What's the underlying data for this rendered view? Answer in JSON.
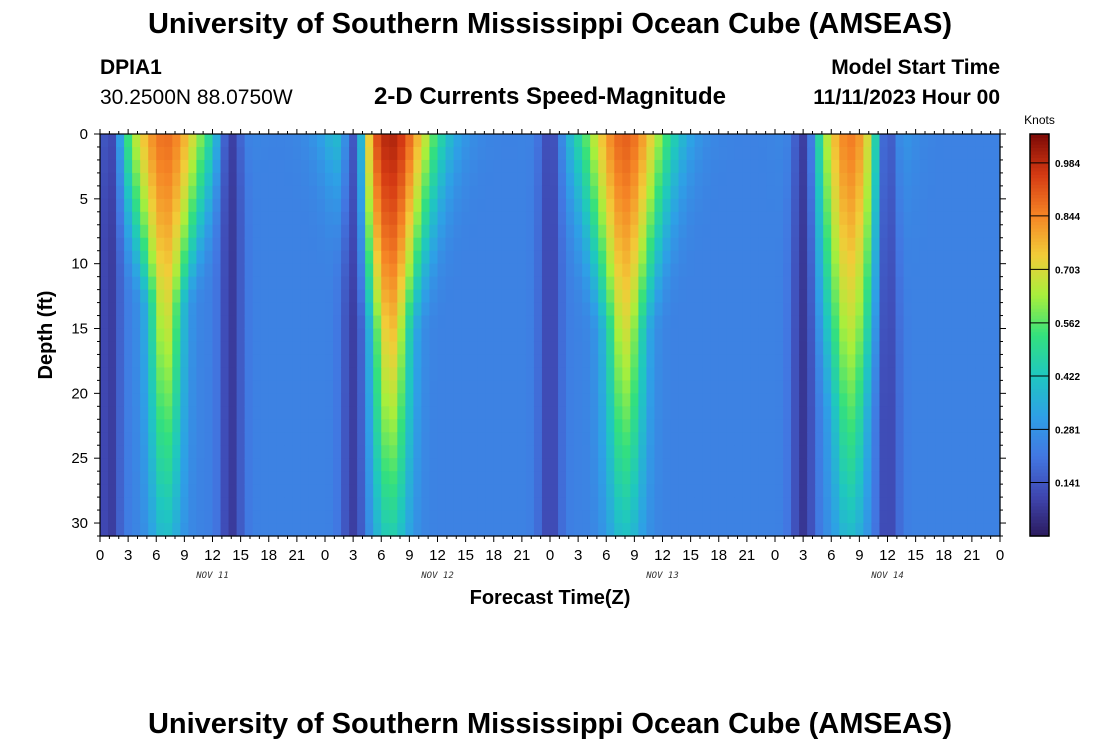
{
  "header": {
    "title": "University of Southern Mississippi Ocean Cube (AMSEAS)",
    "station": "DPIA1",
    "coords": "30.2500N  88.0750W",
    "subtitle": "2-D Currents Speed-Magnitude",
    "start_label": "Model Start Time",
    "start_value": "11/11/2023 Hour 00"
  },
  "footer": {
    "title": "University of Southern Mississippi Ocean Cube (AMSEAS)"
  },
  "colors": {
    "colormap": [
      "#2b1a5c",
      "#3f46b0",
      "#4277e2",
      "#2ea0e6",
      "#1fc7c0",
      "#33e07e",
      "#a8ef3c",
      "#f2cc38",
      "#f58425",
      "#d53a13",
      "#7d0a06"
    ]
  },
  "chart_data": {
    "type": "heatmap",
    "title": "2-D Currents Speed-Magnitude",
    "xlabel": "Forecast Time(Z)",
    "ylabel": "Depth (ft)",
    "xlim": [
      0,
      96
    ],
    "ylim": [
      31,
      0
    ],
    "x_ticks": [
      0,
      3,
      6,
      9,
      12,
      15,
      18,
      21,
      24,
      27,
      30,
      33,
      36,
      39,
      42,
      45,
      48,
      51,
      54,
      57,
      60,
      63,
      66,
      69,
      72,
      75,
      78,
      81,
      84,
      87,
      90,
      93,
      96
    ],
    "x_tick_labels": [
      "0",
      "3",
      "6",
      "9",
      "12",
      "15",
      "18",
      "21",
      "0",
      "3",
      "6",
      "9",
      "12",
      "15",
      "18",
      "21",
      "0",
      "3",
      "6",
      "9",
      "12",
      "15",
      "18",
      "21",
      "0",
      "3",
      "6",
      "9",
      "12",
      "15",
      "18",
      "21",
      "0"
    ],
    "day_labels": [
      {
        "x": 12,
        "label": "NOV 11"
      },
      {
        "x": 36,
        "label": "NOV 12"
      },
      {
        "x": 60,
        "label": "NOV 13"
      },
      {
        "x": 84,
        "label": "NOV 14"
      }
    ],
    "y_ticks": [
      0,
      5,
      10,
      15,
      20,
      25,
      30
    ],
    "y_tick_labels": [
      "0",
      "5",
      "10",
      "15",
      "20",
      "25",
      "30"
    ],
    "colorbar": {
      "unit": "Knots",
      "min": 0.0,
      "max": 1.06,
      "ticks": [
        0.141,
        0.281,
        0.422,
        0.562,
        0.703,
        0.844,
        0.984
      ],
      "tick_labels": [
        "0.141",
        "0.281",
        "0.422",
        "0.562",
        "0.703",
        "0.844",
        "0.984"
      ]
    },
    "background_speed": 0.24,
    "features": [
      {
        "kind": "peak",
        "center_hour": 7,
        "speed": 0.88,
        "width_surface": 3.5,
        "width_bottom": 1.3,
        "decay_depth": 13
      },
      {
        "kind": "peak",
        "center_hour": 31,
        "speed": 1.0,
        "width_surface": 3.5,
        "width_bottom": 1.5,
        "decay_depth": 15
      },
      {
        "kind": "peak",
        "center_hour": 56,
        "speed": 0.9,
        "width_surface": 3.5,
        "width_bottom": 1.5,
        "decay_depth": 15
      },
      {
        "kind": "peak",
        "center_hour": 80,
        "speed": 0.86,
        "width_surface": 2.8,
        "width_bottom": 1.4,
        "decay_depth": 22
      },
      {
        "kind": "slack",
        "center_hour": 14,
        "speed": 0.05
      },
      {
        "kind": "slack",
        "center_hour": 27,
        "speed": 0.06
      },
      {
        "kind": "slack",
        "center_hour": 48,
        "speed": 0.08
      },
      {
        "kind": "slack",
        "center_hour": 75,
        "speed": 0.04
      },
      {
        "kind": "slack",
        "center_hour": 84,
        "speed": 0.08
      },
      {
        "kind": "slack",
        "center_hour": 1,
        "speed": 0.05
      }
    ]
  }
}
